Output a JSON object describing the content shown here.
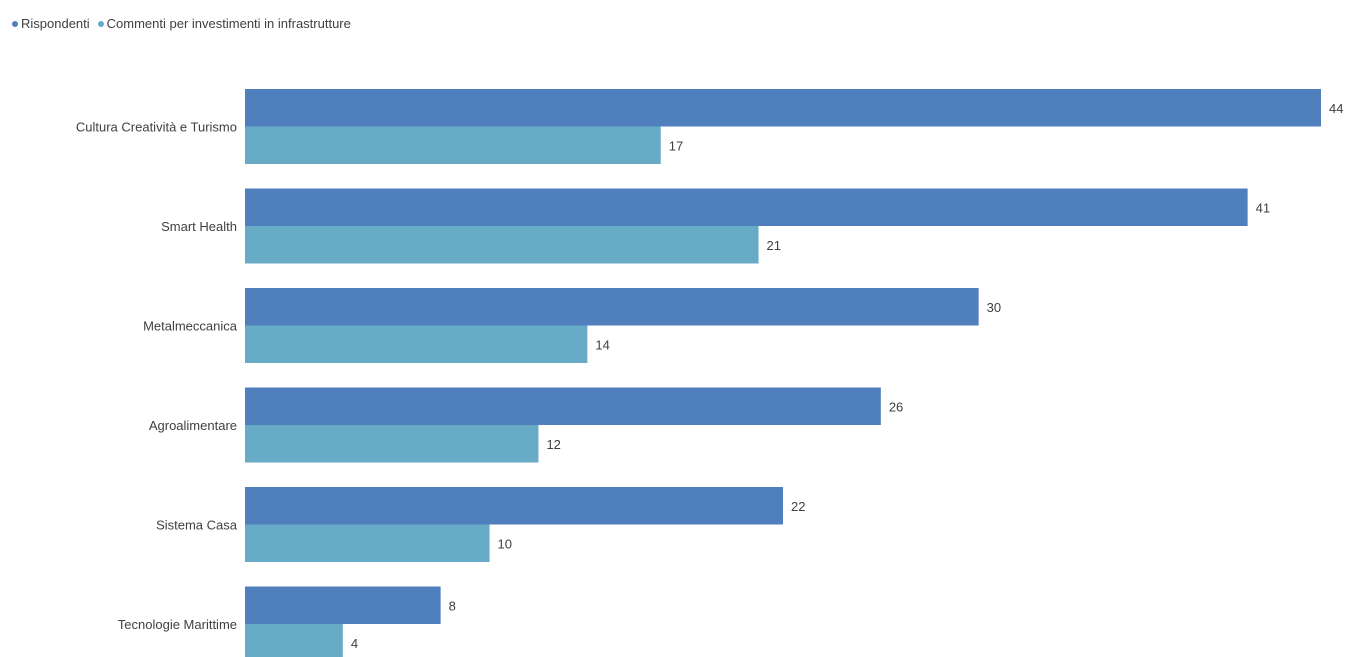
{
  "legend": [
    {
      "label": "Rispondenti",
      "color": "#4f7fbd"
    },
    {
      "label": "Commenti per investimenti in infrastrutture",
      "color": "#67abc6"
    }
  ],
  "chart_data": {
    "type": "bar",
    "orientation": "horizontal",
    "categories": [
      "Cultura Creatività e Turismo",
      "Smart Health",
      "Metalmeccanica",
      "Agroalimentare",
      "Sistema Casa",
      "Tecnologie Marittime"
    ],
    "series": [
      {
        "name": "Rispondenti",
        "color": "#4f7fbd",
        "values": [
          44,
          41,
          30,
          26,
          22,
          8
        ]
      },
      {
        "name": "Commenti per investimenti in infrastrutture",
        "color": "#67abc6",
        "values": [
          17,
          21,
          14,
          12,
          10,
          4
        ]
      }
    ],
    "xlim": [
      0,
      44
    ],
    "legend_position": "top-left",
    "grid": false,
    "data_labels": true
  }
}
